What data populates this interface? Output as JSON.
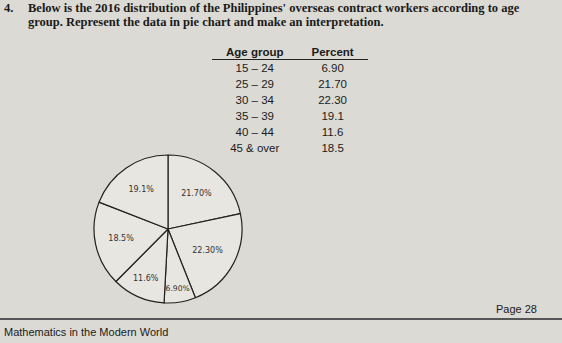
{
  "question": {
    "number": "4.",
    "text": "Below is the 2016 distribution of the Philippines' overseas contract workers according to age group. Represent the data in pie chart and make an interpretation."
  },
  "table": {
    "header": [
      "Age group",
      "Percent"
    ],
    "rows": [
      [
        "15 – 24",
        "6.90"
      ],
      [
        "25 – 29",
        "21.70"
      ],
      [
        "30 – 34",
        "22.30"
      ],
      [
        "35 – 39",
        "19.1"
      ],
      [
        "40 – 44",
        "11.6"
      ],
      [
        "45 & over",
        "18.5"
      ]
    ]
  },
  "chart_data": {
    "type": "pie",
    "values": [
      21.7,
      22.3,
      6.9,
      11.6,
      18.5,
      19.1
    ],
    "value_labels": [
      "21.70%",
      "22.30%",
      "6.90%",
      "11.6%",
      "18.5%",
      "19.1%"
    ],
    "data_labels": true
  },
  "footer": {
    "left": "Mathematics in the Modern World",
    "right": "Page 28"
  }
}
